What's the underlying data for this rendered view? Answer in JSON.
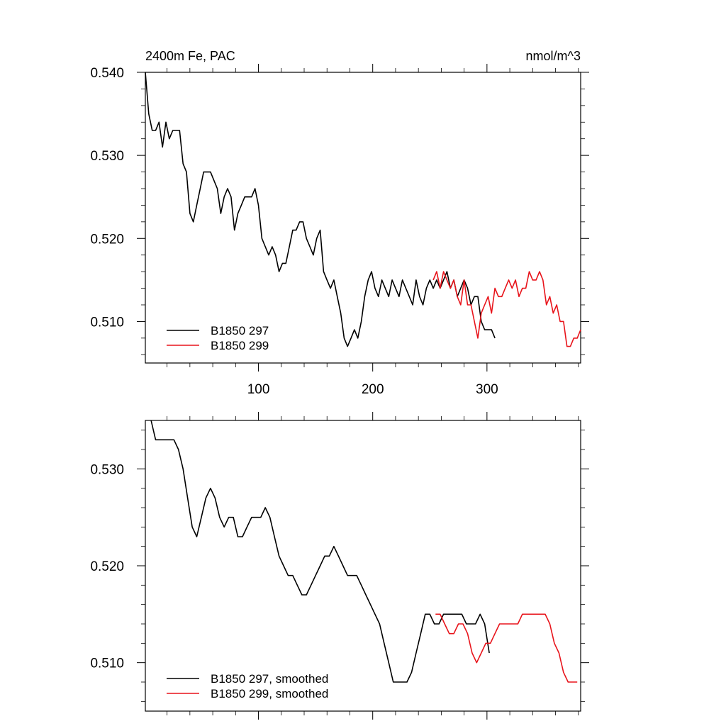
{
  "chart_data": [
    {
      "type": "line",
      "title": "2400m Fe, PAC",
      "units": "nmol/m^3",
      "xlabel": "",
      "ylabel": "",
      "xlim": [
        1,
        382
      ],
      "ylim": [
        0.505,
        0.54
      ],
      "xticks": [
        100,
        200,
        300
      ],
      "yticks": [
        0.51,
        0.52,
        0.53,
        0.54
      ],
      "ytick_labels": [
        "0.510",
        "0.520",
        "0.530",
        "0.540"
      ],
      "grid": false,
      "legend_position": "bottom-left",
      "series": [
        {
          "name": "B1850 297",
          "color": "#000000",
          "x": [
            1,
            4,
            7,
            10,
            13,
            16,
            19,
            22,
            25,
            28,
            31,
            34,
            37,
            40,
            43,
            46,
            49,
            52,
            55,
            58,
            61,
            64,
            67,
            70,
            73,
            76,
            79,
            82,
            85,
            88,
            91,
            94,
            97,
            100,
            103,
            106,
            109,
            112,
            115,
            118,
            121,
            124,
            127,
            130,
            133,
            136,
            139,
            142,
            145,
            148,
            151,
            154,
            157,
            160,
            163,
            166,
            169,
            172,
            175,
            178,
            181,
            184,
            187,
            190,
            193,
            196,
            199,
            202,
            205,
            208,
            211,
            214,
            217,
            220,
            223,
            226,
            229,
            232,
            235,
            238,
            241,
            244,
            247,
            250,
            253,
            256,
            259,
            262,
            265,
            268,
            271,
            274,
            277,
            280,
            283,
            286,
            289,
            292,
            295,
            298,
            301,
            304,
            307
          ],
          "values": [
            0.54,
            0.535,
            0.533,
            0.533,
            0.534,
            0.531,
            0.534,
            0.532,
            0.533,
            0.533,
            0.533,
            0.529,
            0.528,
            0.523,
            0.522,
            0.524,
            0.526,
            0.528,
            0.528,
            0.528,
            0.527,
            0.526,
            0.523,
            0.525,
            0.526,
            0.525,
            0.521,
            0.523,
            0.524,
            0.525,
            0.525,
            0.525,
            0.526,
            0.524,
            0.52,
            0.519,
            0.518,
            0.519,
            0.518,
            0.516,
            0.517,
            0.517,
            0.519,
            0.521,
            0.521,
            0.522,
            0.522,
            0.52,
            0.519,
            0.518,
            0.52,
            0.521,
            0.516,
            0.515,
            0.514,
            0.515,
            0.513,
            0.511,
            0.508,
            0.507,
            0.508,
            0.509,
            0.508,
            0.51,
            0.513,
            0.515,
            0.516,
            0.514,
            0.513,
            0.515,
            0.514,
            0.513,
            0.515,
            0.514,
            0.513,
            0.515,
            0.514,
            0.513,
            0.512,
            0.515,
            0.513,
            0.512,
            0.514,
            0.515,
            0.514,
            0.515,
            0.514,
            0.515,
            0.516,
            0.514,
            0.515,
            0.513,
            0.514,
            0.515,
            0.514,
            0.512,
            0.513,
            0.513,
            0.51,
            0.509,
            0.509,
            0.509,
            0.508
          ]
        },
        {
          "name": "B1850 299",
          "color": "#e8141b",
          "x": [
            253,
            256,
            259,
            262,
            265,
            268,
            271,
            274,
            277,
            280,
            283,
            286,
            289,
            292,
            295,
            298,
            301,
            304,
            307,
            310,
            313,
            316,
            319,
            322,
            325,
            328,
            331,
            334,
            337,
            340,
            343,
            346,
            349,
            352,
            355,
            358,
            361,
            364,
            367,
            370,
            373,
            376,
            379,
            382
          ],
          "values": [
            0.515,
            0.516,
            0.514,
            0.516,
            0.515,
            0.514,
            0.515,
            0.513,
            0.512,
            0.515,
            0.512,
            0.512,
            0.51,
            0.508,
            0.511,
            0.512,
            0.513,
            0.511,
            0.514,
            0.513,
            0.513,
            0.514,
            0.515,
            0.514,
            0.515,
            0.513,
            0.514,
            0.514,
            0.516,
            0.515,
            0.515,
            0.516,
            0.515,
            0.512,
            0.513,
            0.511,
            0.512,
            0.51,
            0.51,
            0.507,
            0.507,
            0.508,
            0.508,
            0.509
          ]
        }
      ]
    },
    {
      "type": "line",
      "title": "",
      "xlabel": "",
      "ylabel": "",
      "xlim": [
        1,
        382
      ],
      "ylim": [
        0.505,
        0.535
      ],
      "xticks": [
        100,
        200,
        300
      ],
      "yticks": [
        0.51,
        0.52,
        0.53
      ],
      "ytick_labels": [
        "0.510",
        "0.520",
        "0.530"
      ],
      "grid": false,
      "legend_position": "bottom-left",
      "series": [
        {
          "name": "B1850 297, smoothed",
          "color": "#000000",
          "x": [
            6,
            10,
            14,
            18,
            22,
            26,
            30,
            34,
            38,
            42,
            46,
            50,
            54,
            58,
            62,
            66,
            70,
            74,
            78,
            82,
            86,
            90,
            94,
            98,
            102,
            106,
            110,
            114,
            118,
            122,
            126,
            130,
            134,
            138,
            142,
            146,
            150,
            154,
            158,
            162,
            166,
            170,
            174,
            178,
            182,
            186,
            190,
            194,
            198,
            202,
            206,
            210,
            214,
            218,
            222,
            226,
            230,
            234,
            238,
            242,
            246,
            250,
            254,
            258,
            262,
            266,
            270,
            274,
            278,
            282,
            286,
            290,
            294,
            298,
            302
          ],
          "values": [
            0.535,
            0.533,
            0.533,
            0.533,
            0.533,
            0.533,
            0.532,
            0.53,
            0.527,
            0.524,
            0.523,
            0.525,
            0.527,
            0.528,
            0.527,
            0.525,
            0.524,
            0.525,
            0.525,
            0.523,
            0.523,
            0.524,
            0.525,
            0.525,
            0.525,
            0.526,
            0.525,
            0.523,
            0.521,
            0.52,
            0.519,
            0.519,
            0.518,
            0.517,
            0.517,
            0.518,
            0.519,
            0.52,
            0.521,
            0.521,
            0.522,
            0.521,
            0.52,
            0.519,
            0.519,
            0.519,
            0.518,
            0.517,
            0.516,
            0.515,
            0.514,
            0.512,
            0.51,
            0.508,
            0.508,
            0.508,
            0.508,
            0.509,
            0.511,
            0.513,
            0.515,
            0.515,
            0.514,
            0.514,
            0.515,
            0.515,
            0.515,
            0.515,
            0.515,
            0.514,
            0.514,
            0.514,
            0.515,
            0.514,
            0.511
          ]
        },
        {
          "name": "B1850 299, smoothed",
          "color": "#e8141b",
          "x": [
            255,
            259,
            263,
            267,
            271,
            275,
            279,
            283,
            287,
            291,
            295,
            299,
            303,
            307,
            311,
            315,
            319,
            323,
            327,
            331,
            335,
            339,
            343,
            347,
            351,
            355,
            359,
            363,
            367,
            371,
            375,
            379
          ],
          "values": [
            0.515,
            0.515,
            0.514,
            0.513,
            0.513,
            0.514,
            0.514,
            0.513,
            0.511,
            0.51,
            0.511,
            0.512,
            0.512,
            0.513,
            0.514,
            0.514,
            0.514,
            0.514,
            0.514,
            0.515,
            0.515,
            0.515,
            0.515,
            0.515,
            0.515,
            0.514,
            0.512,
            0.511,
            0.509,
            0.508,
            0.508,
            0.508
          ]
        }
      ]
    }
  ]
}
